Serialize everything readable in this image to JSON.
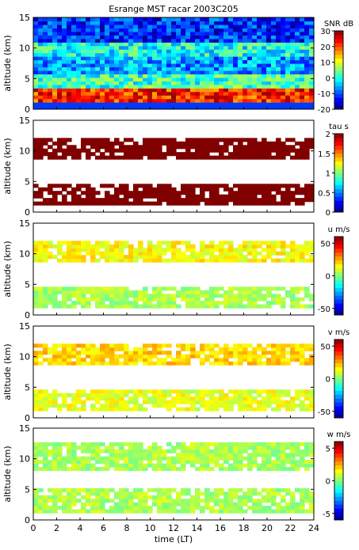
{
  "chart_data": [
    {
      "type": "heatmap",
      "title": "Esrange MST racar 2003C205",
      "ylabel": "altitude (km)",
      "xlim": [
        0,
        24
      ],
      "ylim": [
        0,
        15
      ],
      "yticks": [
        0,
        5,
        10,
        15
      ],
      "colorbar": {
        "label": "SNR dB",
        "ticks": [
          -20,
          -10,
          0,
          10,
          20,
          30
        ],
        "range": [
          -20,
          30
        ]
      },
      "bands": [
        {
          "alt_from": 1.2,
          "alt_to": 3.5,
          "value": 22
        },
        {
          "alt_from": 3.5,
          "alt_to": 5.5,
          "value": 2
        },
        {
          "alt_from": 5.5,
          "alt_to": 8.5,
          "value": -6
        },
        {
          "alt_from": 8.5,
          "alt_to": 11.0,
          "value": 0
        },
        {
          "alt_from": 11.0,
          "alt_to": 15.0,
          "value": -12
        }
      ]
    },
    {
      "type": "heatmap",
      "ylabel": "altitude (km)",
      "xlim": [
        0,
        24
      ],
      "ylim": [
        0,
        15
      ],
      "yticks": [
        0,
        5,
        10,
        15
      ],
      "colorbar": {
        "label": "tau s",
        "ticks": [
          0,
          0.5,
          1,
          1.5,
          2
        ],
        "range": [
          0,
          2
        ]
      },
      "bands": [
        {
          "alt_from": 1.0,
          "alt_to": 4.5,
          "value": 2
        },
        {
          "alt_from": 8.5,
          "alt_to": 12.0,
          "value": 2
        }
      ]
    },
    {
      "type": "heatmap",
      "ylabel": "altitude (km)",
      "xlim": [
        0,
        24
      ],
      "ylim": [
        0,
        15
      ],
      "yticks": [
        0,
        5,
        10,
        15
      ],
      "colorbar": {
        "label": "u m/s",
        "ticks": [
          -50,
          0,
          50
        ],
        "range": [
          -60,
          60
        ]
      },
      "bands": [
        {
          "alt_from": 1.0,
          "alt_to": 4.5,
          "value": 5
        },
        {
          "alt_from": 8.5,
          "alt_to": 12.0,
          "value": 15
        }
      ]
    },
    {
      "type": "heatmap",
      "ylabel": "altitude (km)",
      "xlim": [
        0,
        24
      ],
      "ylim": [
        0,
        15
      ],
      "yticks": [
        0,
        5,
        10,
        15
      ],
      "colorbar": {
        "label": "v m/s",
        "ticks": [
          -50,
          0,
          50
        ],
        "range": [
          -60,
          60
        ]
      },
      "bands": [
        {
          "alt_from": 1.0,
          "alt_to": 4.5,
          "value": 12
        },
        {
          "alt_from": 8.5,
          "alt_to": 12.0,
          "value": 20
        }
      ]
    },
    {
      "type": "heatmap",
      "ylabel": "altitude (km)",
      "xlabel": "time (LT)",
      "xlim": [
        0,
        24
      ],
      "ylim": [
        0,
        15
      ],
      "yticks": [
        0,
        5,
        10,
        15
      ],
      "xticks": [
        0,
        2,
        4,
        6,
        8,
        10,
        12,
        14,
        16,
        18,
        20,
        22,
        24
      ],
      "colorbar": {
        "label": "w m/s",
        "ticks": [
          -5,
          0,
          5
        ],
        "range": [
          -6,
          6
        ]
      },
      "bands": [
        {
          "alt_from": 1.0,
          "alt_to": 5.0,
          "value": 0.5
        },
        {
          "alt_from": 8.0,
          "alt_to": 12.5,
          "value": 0.5
        }
      ]
    }
  ]
}
